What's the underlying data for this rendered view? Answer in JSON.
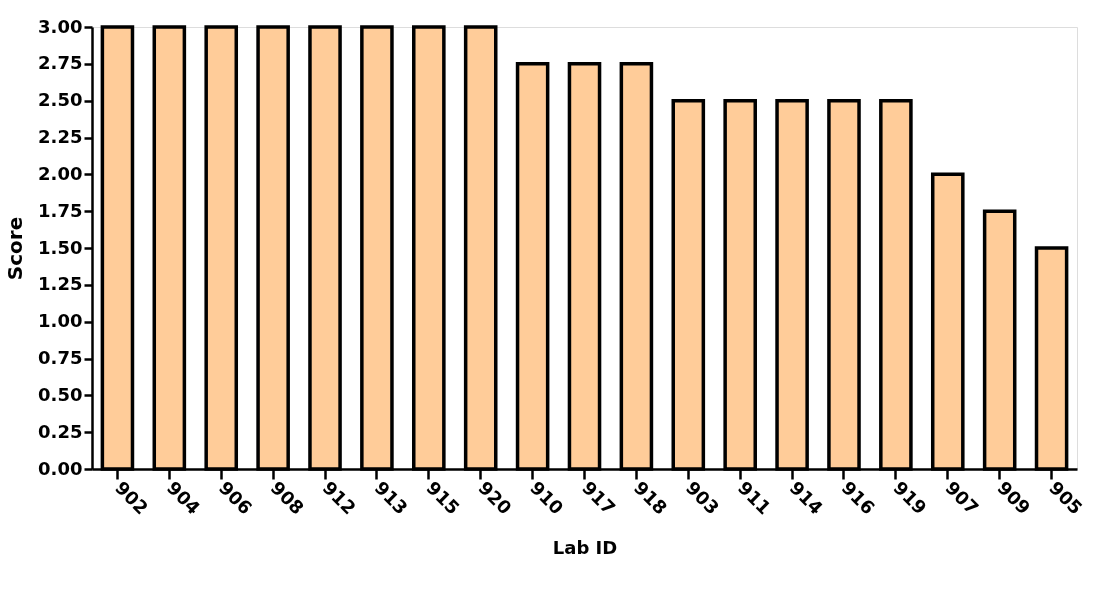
{
  "chart_data": {
    "type": "bar",
    "xlabel": "Lab ID",
    "ylabel": "Score",
    "categories": [
      "902",
      "904",
      "906",
      "908",
      "912",
      "913",
      "915",
      "920",
      "910",
      "917",
      "918",
      "903",
      "911",
      "914",
      "916",
      "919",
      "907",
      "909",
      "905"
    ],
    "values": [
      3.0,
      3.0,
      3.0,
      3.0,
      3.0,
      3.0,
      3.0,
      3.0,
      2.75,
      2.75,
      2.75,
      2.5,
      2.5,
      2.5,
      2.5,
      2.5,
      2.0,
      1.75,
      1.5
    ],
    "color": "#ffcc99",
    "ylim": [
      0,
      3
    ],
    "yticks": [
      {
        "value": 0,
        "label": "0.00"
      },
      {
        "value": 0.25,
        "label": "0.25"
      },
      {
        "value": 0.5,
        "label": "0.50"
      },
      {
        "value": 0.75,
        "label": "0.75"
      },
      {
        "value": 1,
        "label": "1.00"
      },
      {
        "value": 1.25,
        "label": "1.25"
      },
      {
        "value": 1.5,
        "label": "1.50"
      },
      {
        "value": 1.75,
        "label": "1.75"
      },
      {
        "value": 2,
        "label": "2.00"
      },
      {
        "value": 2.25,
        "label": "2.25"
      },
      {
        "value": 2.5,
        "label": "2.50"
      },
      {
        "value": 2.75,
        "label": "2.75"
      },
      {
        "value": 3,
        "label": "3.00"
      }
    ],
    "grid": false
  }
}
